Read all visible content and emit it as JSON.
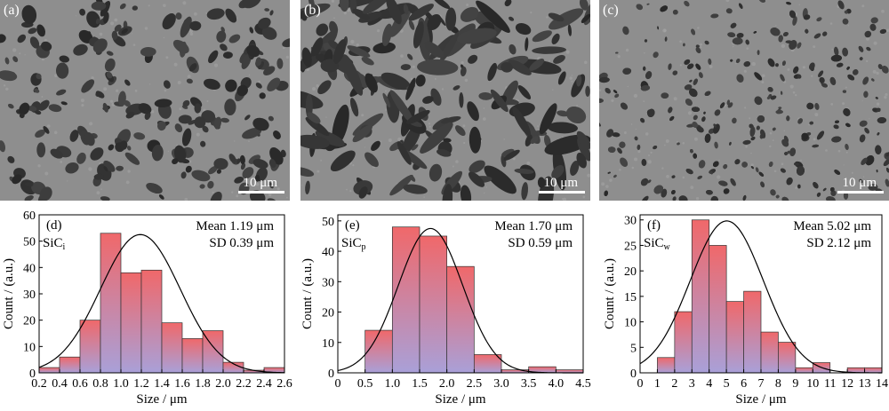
{
  "colors": {
    "sem_background": "#8e8e8e",
    "pore": "#3a3a3a",
    "bar_top": "#f0686a",
    "bar_bottom": "#a9a0d8",
    "curve": "#000000"
  },
  "sem_panels": [
    {
      "label": "(a)",
      "scale_label": "10 μm",
      "pore_style": "medium"
    },
    {
      "label": "(b)",
      "scale_label": "10 μm",
      "pore_style": "elongated"
    },
    {
      "label": "(c)",
      "scale_label": "10 μm",
      "pore_style": "fine"
    }
  ],
  "chart_data": [
    {
      "type": "bar",
      "panel_label": "(d)",
      "series_label": "SiC",
      "series_sub": "i",
      "stat_mean": "Mean 1.19 μm",
      "stat_sd": "SD 0.39 μm",
      "xlabel": "Size / μm",
      "ylabel": "Count / (a.u.)",
      "xlim": [
        0.2,
        2.6
      ],
      "ylim": [
        0,
        60
      ],
      "xticks": [
        "0.2",
        "0.4",
        "0.6",
        "0.8",
        "1.0",
        "1.2",
        "1.4",
        "1.6",
        "1.8",
        "2.0",
        "2.2",
        "2.4",
        "2.6"
      ],
      "xtick_values": [
        0.2,
        0.4,
        0.6,
        0.8,
        1.0,
        1.2,
        1.4,
        1.6,
        1.8,
        2.0,
        2.2,
        2.4,
        2.6
      ],
      "yticks": [
        0,
        10,
        20,
        30,
        40,
        50,
        60
      ],
      "bins": [
        {
          "x0": 0.2,
          "x1": 0.4,
          "count": 2
        },
        {
          "x0": 0.4,
          "x1": 0.6,
          "count": 6
        },
        {
          "x0": 0.6,
          "x1": 0.8,
          "count": 20
        },
        {
          "x0": 0.8,
          "x1": 1.0,
          "count": 53
        },
        {
          "x0": 1.0,
          "x1": 1.2,
          "count": 38
        },
        {
          "x0": 1.2,
          "x1": 1.4,
          "count": 39
        },
        {
          "x0": 1.4,
          "x1": 1.6,
          "count": 19
        },
        {
          "x0": 1.6,
          "x1": 1.8,
          "count": 13
        },
        {
          "x0": 1.8,
          "x1": 2.0,
          "count": 16
        },
        {
          "x0": 2.0,
          "x1": 2.2,
          "count": 4
        },
        {
          "x0": 2.2,
          "x1": 2.4,
          "count": 1
        },
        {
          "x0": 2.4,
          "x1": 2.6,
          "count": 2
        }
      ],
      "fit": {
        "mean": 1.19,
        "sd": 0.39,
        "peak": 52.5
      }
    },
    {
      "type": "bar",
      "panel_label": "(e)",
      "series_label": "SiC",
      "series_sub": "p",
      "stat_mean": "Mean 1.70 μm",
      "stat_sd": "SD 0.59 μm",
      "xlabel": "Size / μm",
      "ylabel": "Count / (a.u.)",
      "xlim": [
        0,
        4.5
      ],
      "ylim": [
        0,
        52
      ],
      "xticks": [
        "0",
        "0.5",
        "1.0",
        "1.5",
        "2.0",
        "2.5",
        "3.0",
        "3.5",
        "4.0",
        "4.5"
      ],
      "xtick_values": [
        0,
        0.5,
        1.0,
        1.5,
        2.0,
        2.5,
        3.0,
        3.5,
        4.0,
        4.5
      ],
      "yticks": [
        0,
        10,
        20,
        30,
        40,
        50
      ],
      "bins": [
        {
          "x0": 0.5,
          "x1": 1.0,
          "count": 14
        },
        {
          "x0": 1.0,
          "x1": 1.5,
          "count": 48
        },
        {
          "x0": 1.5,
          "x1": 2.0,
          "count": 45
        },
        {
          "x0": 2.0,
          "x1": 2.5,
          "count": 35
        },
        {
          "x0": 2.5,
          "x1": 3.0,
          "count": 6
        },
        {
          "x0": 3.0,
          "x1": 3.5,
          "count": 1
        },
        {
          "x0": 3.5,
          "x1": 4.0,
          "count": 2
        },
        {
          "x0": 4.0,
          "x1": 4.5,
          "count": 1
        }
      ],
      "fit": {
        "mean": 1.7,
        "sd": 0.59,
        "peak": 47.5
      }
    },
    {
      "type": "bar",
      "panel_label": "(f)",
      "series_label": "SiC",
      "series_sub": "w",
      "stat_mean": "Mean 5.02 μm",
      "stat_sd": "SD 2.12 μm",
      "xlabel": "Size / μm",
      "ylabel": "Count / (a.u.)",
      "xlim": [
        0,
        14
      ],
      "ylim": [
        0,
        31
      ],
      "xticks": [
        "0",
        "1",
        "2",
        "3",
        "4",
        "5",
        "6",
        "7",
        "8",
        "9",
        "10",
        "11",
        "12",
        "13",
        "14"
      ],
      "xtick_values": [
        0,
        1,
        2,
        3,
        4,
        5,
        6,
        7,
        8,
        9,
        10,
        11,
        12,
        13,
        14
      ],
      "yticks": [
        0,
        5,
        10,
        15,
        20,
        25,
        30
      ],
      "bins": [
        {
          "x0": 1,
          "x1": 2,
          "count": 3
        },
        {
          "x0": 2,
          "x1": 3,
          "count": 12
        },
        {
          "x0": 3,
          "x1": 4,
          "count": 30
        },
        {
          "x0": 4,
          "x1": 5,
          "count": 25
        },
        {
          "x0": 5,
          "x1": 6,
          "count": 14
        },
        {
          "x0": 6,
          "x1": 7,
          "count": 16
        },
        {
          "x0": 7,
          "x1": 8,
          "count": 8
        },
        {
          "x0": 8,
          "x1": 9,
          "count": 6
        },
        {
          "x0": 9,
          "x1": 10,
          "count": 1
        },
        {
          "x0": 10,
          "x1": 11,
          "count": 2
        },
        {
          "x0": 11,
          "x1": 12,
          "count": 0
        },
        {
          "x0": 12,
          "x1": 13,
          "count": 1
        },
        {
          "x0": 13,
          "x1": 14,
          "count": 1
        }
      ],
      "fit": {
        "mean": 5.02,
        "sd": 2.12,
        "peak": 29.8
      }
    }
  ]
}
